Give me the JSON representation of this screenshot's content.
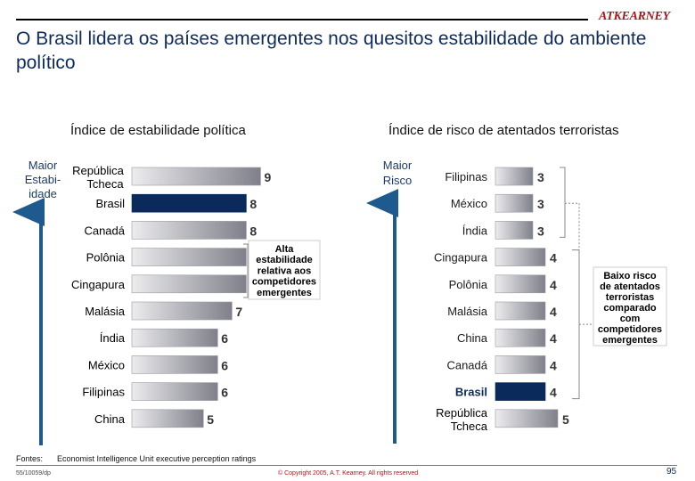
{
  "brand": "ATKEARNEY",
  "title": "O Brasil lidera os países emergentes nos quesitos estabilidade do ambiente político",
  "colors": {
    "bar_gradient_light": "#ececee",
    "bar_gradient_dark": "#7f808a",
    "highlight_bar": "#0b2a5c",
    "arrow": "#1f5a8e",
    "brand_red": "#b0141c",
    "title_blue": "#0e2a5e"
  },
  "chart_data": [
    {
      "type": "bar",
      "orientation": "horizontal",
      "title": "Índice de estabilidade política",
      "axis_label": "Maior Estabilidade",
      "axis_label_lines": [
        "Maior",
        "Estabi-",
        "idade"
      ],
      "categories": [
        [
          "República",
          "Tcheca"
        ],
        [
          "Brasil"
        ],
        [
          "Canadá"
        ],
        [
          "Polônia"
        ],
        [
          "Cingapura"
        ],
        [
          "Malásia"
        ],
        [
          "Índia"
        ],
        [
          "México"
        ],
        [
          "Filipinas"
        ],
        [
          "China"
        ]
      ],
      "values": [
        9,
        8,
        8,
        8,
        8,
        7,
        6,
        6,
        6,
        5
      ],
      "highlight": "Brasil",
      "annotation": [
        "Alta",
        "estabilidade",
        "relativa aos",
        "competidores",
        "emergentes"
      ]
    },
    {
      "type": "bar",
      "orientation": "horizontal",
      "title": "Índice de risco de atentados terroristas",
      "axis_label": "Maior Risco",
      "axis_label_lines": [
        "Maior",
        "Risco"
      ],
      "categories": [
        [
          "Filipinas"
        ],
        [
          "México"
        ],
        [
          "Índia"
        ],
        [
          "Cingapura"
        ],
        [
          "Polônia"
        ],
        [
          "Malásia"
        ],
        [
          "China"
        ],
        [
          "Canadá"
        ],
        [
          "Brasil"
        ],
        [
          "República",
          "Tcheca"
        ]
      ],
      "values": [
        3,
        3,
        3,
        4,
        4,
        4,
        4,
        4,
        4,
        5
      ],
      "highlight": "Brasil",
      "annotation": [
        "Baixo risco",
        "de atentados",
        "terroristas",
        "comparado",
        "com",
        "competidores",
        "emergentes"
      ]
    }
  ],
  "footer": {
    "sources_label": "Fontes:",
    "sources_text": "Economist Intelligence Unit executive perception ratings",
    "code": "55/10059/dp",
    "copyright": "© Copyright 2005, A.T. Kearney. All rights reserved",
    "page": "95"
  }
}
